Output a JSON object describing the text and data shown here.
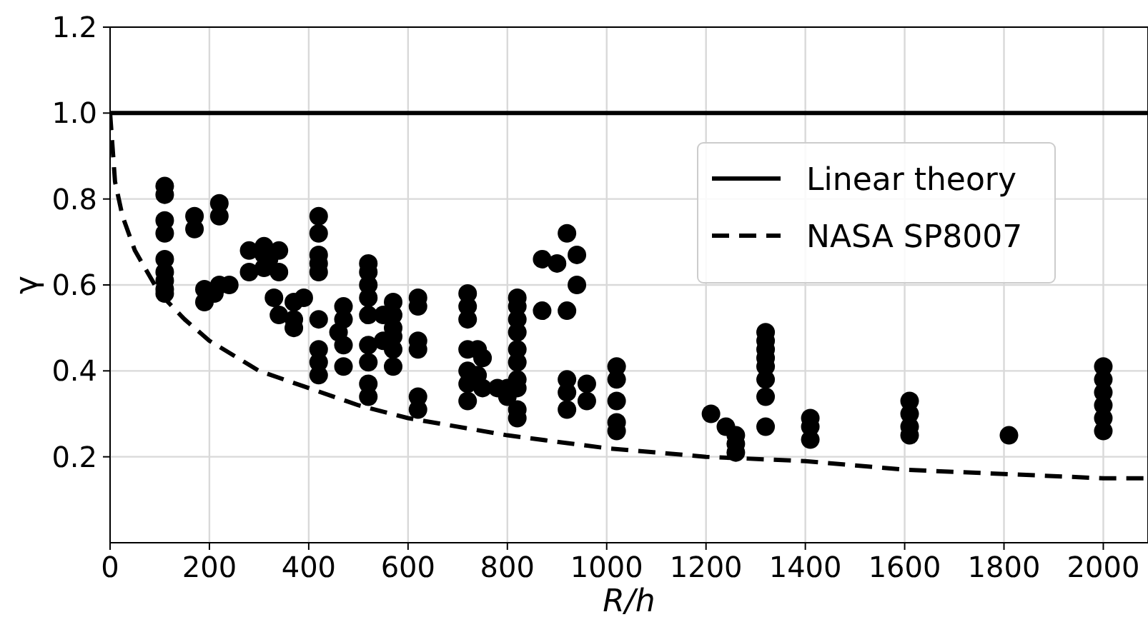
{
  "chart_data": {
    "type": "scatter",
    "xlabel": "R/h",
    "ylabel": "γ",
    "xlim": [
      0,
      2090
    ],
    "ylim": [
      0,
      1.2
    ],
    "xticks": [
      0,
      200,
      400,
      600,
      800,
      1000,
      1200,
      1400,
      1600,
      1800,
      2000
    ],
    "yticks": [
      {
        "value": 0.2,
        "label": "0.2"
      },
      {
        "value": 0.4,
        "label": "0.4"
      },
      {
        "value": 0.6,
        "label": "0.6"
      },
      {
        "value": 0.8,
        "label": "0.8"
      },
      {
        "value": 1.0,
        "label": "1.0"
      },
      {
        "value": 1.2,
        "label": "1.2"
      }
    ],
    "grid": true,
    "legend": "top right",
    "marker": "circle",
    "series": [
      {
        "type": "line",
        "name": "Linear theory",
        "color": "#000000",
        "line_style": "solid",
        "marker": "none",
        "x": [
          0,
          2090
        ],
        "values": [
          1.0,
          1.0
        ]
      },
      {
        "type": "line",
        "name": "NASA SP8007",
        "color": "#000000",
        "line_style": "dashed",
        "marker": "none",
        "x": [
          0,
          10,
          25,
          50,
          100,
          150,
          200,
          300,
          400,
          500,
          600,
          800,
          1000,
          1200,
          1400,
          1600,
          1800,
          2000,
          2090
        ],
        "values": [
          1.0,
          0.84,
          0.76,
          0.68,
          0.58,
          0.52,
          0.47,
          0.4,
          0.36,
          0.32,
          0.29,
          0.25,
          0.22,
          0.2,
          0.19,
          0.17,
          0.16,
          0.15,
          0.15
        ]
      },
      {
        "color": "#000000",
        "x": [
          110,
          110,
          110,
          110,
          110,
          110,
          110,
          110,
          110,
          170,
          170,
          190,
          190,
          210,
          220,
          220,
          220,
          240,
          280,
          280,
          310,
          310,
          310,
          320,
          330,
          340,
          340,
          340,
          370,
          370,
          370,
          390,
          420,
          420,
          420,
          420,
          420,
          420,
          420,
          420,
          420,
          460,
          470,
          470,
          470,
          470,
          520,
          520,
          520,
          520,
          520,
          520,
          520,
          520,
          520,
          550,
          550,
          570,
          570,
          570,
          570,
          570,
          570,
          620,
          620,
          620,
          620,
          620,
          620,
          720,
          720,
          720,
          720,
          720,
          720,
          720,
          740,
          740,
          750,
          750,
          780,
          800,
          800,
          820,
          820,
          820,
          820,
          820,
          820,
          820,
          820,
          820,
          820,
          870,
          870,
          900,
          920,
          920,
          920,
          920,
          920,
          940,
          940,
          960,
          960,
          1020,
          1020,
          1020,
          1020,
          1020,
          1210,
          1240,
          1260,
          1260,
          1260,
          1320,
          1320,
          1320,
          1320,
          1320,
          1320,
          1320,
          1320,
          1410,
          1410,
          1410,
          1610,
          1610,
          1610,
          1610,
          1810,
          2000,
          2000,
          2000,
          2000,
          2000,
          2000
        ],
        "values": [
          0.83,
          0.81,
          0.75,
          0.72,
          0.66,
          0.63,
          0.61,
          0.59,
          0.58,
          0.76,
          0.73,
          0.59,
          0.56,
          0.58,
          0.79,
          0.76,
          0.6,
          0.6,
          0.68,
          0.63,
          0.69,
          0.67,
          0.64,
          0.66,
          0.57,
          0.68,
          0.63,
          0.53,
          0.56,
          0.52,
          0.5,
          0.57,
          0.76,
          0.72,
          0.67,
          0.65,
          0.63,
          0.52,
          0.45,
          0.42,
          0.39,
          0.49,
          0.55,
          0.52,
          0.46,
          0.41,
          0.65,
          0.63,
          0.6,
          0.57,
          0.53,
          0.46,
          0.42,
          0.37,
          0.34,
          0.53,
          0.47,
          0.56,
          0.53,
          0.5,
          0.48,
          0.45,
          0.41,
          0.57,
          0.55,
          0.47,
          0.45,
          0.34,
          0.31,
          0.58,
          0.55,
          0.52,
          0.45,
          0.4,
          0.37,
          0.33,
          0.45,
          0.39,
          0.43,
          0.36,
          0.36,
          0.36,
          0.34,
          0.57,
          0.55,
          0.52,
          0.49,
          0.45,
          0.42,
          0.38,
          0.36,
          0.31,
          0.29,
          0.66,
          0.54,
          0.65,
          0.72,
          0.54,
          0.38,
          0.35,
          0.31,
          0.67,
          0.6,
          0.37,
          0.33,
          0.41,
          0.38,
          0.33,
          0.28,
          0.26,
          0.3,
          0.27,
          0.25,
          0.23,
          0.21,
          0.49,
          0.47,
          0.45,
          0.43,
          0.41,
          0.38,
          0.34,
          0.27,
          0.29,
          0.27,
          0.24,
          0.33,
          0.3,
          0.27,
          0.25,
          0.25,
          0.41,
          0.38,
          0.35,
          0.32,
          0.29,
          0.26
        ]
      }
    ]
  }
}
